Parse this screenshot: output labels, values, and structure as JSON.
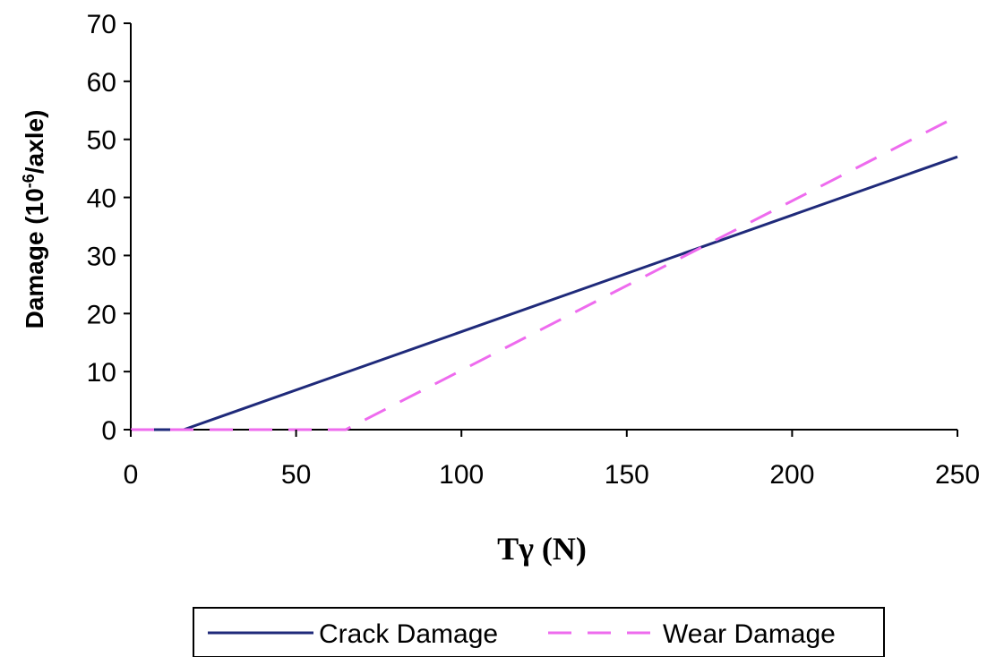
{
  "chart_data": {
    "type": "line",
    "title": "",
    "xlabel": "Tγ (N)",
    "ylabel": {
      "prefix": "Damage (10",
      "superscript": "-6",
      "suffix": "/axle)"
    },
    "xlim": [
      0,
      250
    ],
    "ylim": [
      0,
      70
    ],
    "xticks": [
      0,
      50,
      100,
      150,
      200,
      250
    ],
    "yticks": [
      0,
      10,
      20,
      30,
      40,
      50,
      60,
      70
    ],
    "grid": false,
    "legend_position": "bottom",
    "series": [
      {
        "name": "Crack Damage",
        "color": "#1f2a7a",
        "dash": "solid",
        "x": [
          0,
          16,
          250
        ],
        "y": [
          0,
          0,
          47
        ]
      },
      {
        "name": "Wear Damage",
        "color": "#ee6bee",
        "dash": "dashed",
        "x": [
          0,
          65,
          250
        ],
        "y": [
          0,
          0,
          54
        ]
      }
    ]
  }
}
